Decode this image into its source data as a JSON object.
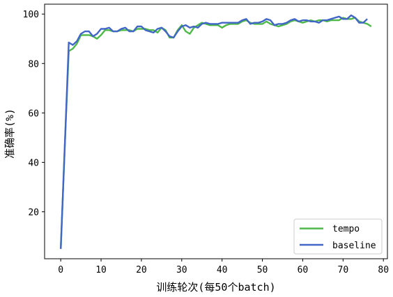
{
  "chart_data": {
    "type": "line",
    "title": "",
    "xlabel": "训练轮次(每50个batch)",
    "ylabel": "准确率(%)",
    "xlim": [
      -4,
      81
    ],
    "ylim": [
      1,
      104
    ],
    "xticks": [
      0,
      10,
      20,
      30,
      40,
      50,
      60,
      70,
      80
    ],
    "yticks": [
      20,
      40,
      60,
      80,
      100
    ],
    "grid": false,
    "legend_position": "bottom-right",
    "series": [
      {
        "name": "tempo",
        "color": "#4db848",
        "x": [
          0,
          1,
          2,
          3,
          4,
          5,
          6,
          7,
          8,
          9,
          10,
          11,
          12,
          13,
          14,
          15,
          16,
          17,
          18,
          19,
          20,
          21,
          22,
          23,
          24,
          25,
          26,
          27,
          28,
          29,
          30,
          31,
          32,
          33,
          34,
          35,
          36,
          37,
          38,
          39,
          40,
          41,
          42,
          43,
          44,
          45,
          46,
          47,
          48,
          49,
          50,
          51,
          52,
          53,
          54,
          55,
          56,
          57,
          58,
          59,
          60,
          61,
          62,
          63,
          64,
          65,
          66,
          67,
          68,
          69,
          70,
          71,
          72,
          73,
          74,
          75,
          76,
          77
        ],
        "values": [
          5,
          46,
          85,
          86,
          88,
          91.5,
          91.5,
          91.5,
          91,
          90,
          91.5,
          93.5,
          93.5,
          93,
          93,
          93.5,
          93.5,
          93.5,
          93,
          94,
          94,
          94,
          93.5,
          93.5,
          92.5,
          94.5,
          93.5,
          90.5,
          90.5,
          93.5,
          95.5,
          93,
          92,
          94.5,
          95.5,
          96.5,
          96,
          95.5,
          95.5,
          95.5,
          94.5,
          95.5,
          96,
          96,
          96,
          97,
          97.5,
          96.5,
          96,
          96,
          96,
          97,
          96,
          95.5,
          95,
          95.5,
          96,
          97,
          97.5,
          97,
          96.5,
          97,
          97.5,
          97,
          97.5,
          97.5,
          97,
          97.5,
          97.5,
          97.5,
          98.5,
          98,
          98,
          98.5,
          97,
          96.5,
          96,
          95
        ]
      },
      {
        "name": "baseline",
        "color": "#4266c8",
        "x": [
          0,
          1,
          2,
          3,
          4,
          5,
          6,
          7,
          8,
          9,
          10,
          11,
          12,
          13,
          14,
          15,
          16,
          17,
          18,
          19,
          20,
          21,
          22,
          23,
          24,
          25,
          26,
          27,
          28,
          29,
          30,
          31,
          32,
          33,
          34,
          35,
          36,
          37,
          38,
          39,
          40,
          41,
          42,
          43,
          44,
          45,
          46,
          47,
          48,
          49,
          50,
          51,
          52,
          53,
          54,
          55,
          56,
          57,
          58,
          59,
          60,
          61,
          62,
          63,
          64,
          65,
          66,
          67,
          68,
          69,
          70,
          71,
          72,
          73,
          74,
          75,
          76
        ],
        "values": [
          5,
          46,
          88.5,
          87.5,
          89,
          92,
          93,
          93,
          91,
          92,
          94,
          94,
          94.5,
          93,
          93,
          94,
          94.5,
          93,
          93,
          95,
          95,
          93.5,
          93,
          92.5,
          94,
          94.5,
          93,
          91,
          90.5,
          93,
          95,
          95.5,
          94.5,
          95,
          94.5,
          96,
          96.5,
          96,
          96,
          96,
          96.5,
          96.5,
          96.5,
          96.5,
          96.5,
          97.5,
          98,
          96,
          96.5,
          96.5,
          97,
          98,
          97.5,
          95.5,
          96,
          96,
          96.5,
          97.5,
          98,
          97,
          97.5,
          97.5,
          97,
          97,
          96.5,
          97.5,
          97.5,
          98,
          98.5,
          99,
          98,
          98,
          99.5,
          98.5,
          96.5,
          96.5,
          98
        ]
      }
    ]
  }
}
